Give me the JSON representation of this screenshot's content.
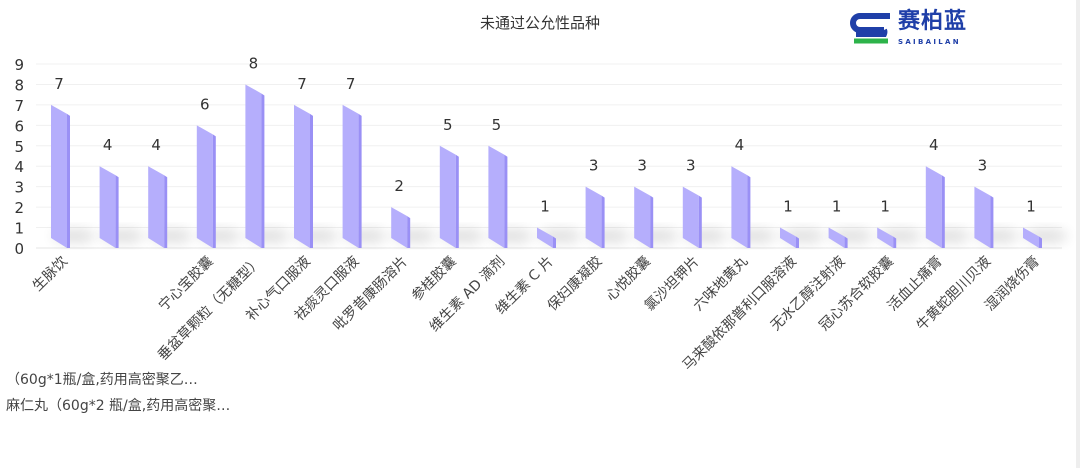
{
  "chart_data": {
    "type": "bar",
    "title": "未通过公允性品种",
    "categories": [
      "生脉饮",
      "（60g*1瓶/盒,药用高密聚乙…",
      "麻仁丸（60g*2 瓶/盒,药用高密聚…",
      "宁心宝胶囊",
      "垂盆草颗粒（无糖型）",
      "补心气口服液",
      "祛痰灵口服液",
      "吡罗昔康肠溶片",
      "参桂胶囊",
      "维生素 AD 滴剂",
      "维生素 C 片",
      "保妇康凝胶",
      "心悦胶囊",
      "氯沙坦钾片",
      "六味地黄丸",
      "马来酸依那普利口服溶液",
      "无水乙醇注射液",
      "冠心苏合软胶囊",
      "活血止痛膏",
      "牛黄蛇胆川贝液",
      "湿润烧伤膏"
    ],
    "values": [
      7,
      4,
      4,
      6,
      8,
      7,
      7,
      2,
      5,
      5,
      1,
      3,
      3,
      3,
      4,
      1,
      1,
      1,
      4,
      3,
      1
    ],
    "ylim": [
      0,
      9
    ],
    "yticks": [
      "0",
      "1",
      "2",
      "3",
      "4",
      "5",
      "6",
      "7",
      "8",
      "9"
    ],
    "grid": true,
    "bar_color": "#b5aefc",
    "bar_side_color": "#9a90f5"
  },
  "logo": {
    "text": "赛柏蓝",
    "sub": "SAIBAILAN"
  }
}
